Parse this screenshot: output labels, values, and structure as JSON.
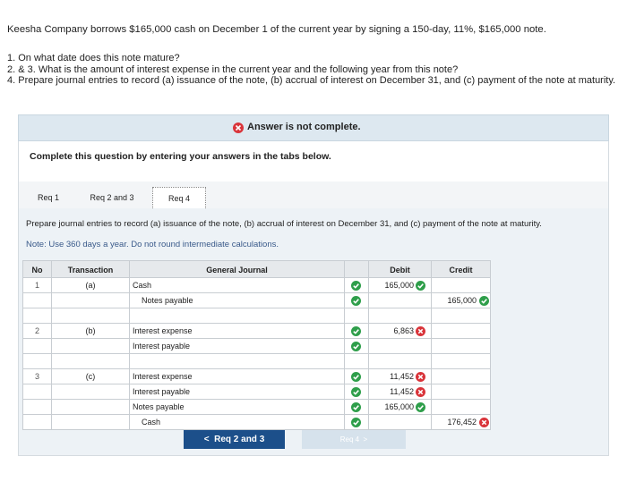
{
  "problem": {
    "intro": "Keesha Company borrows $165,000 cash on December 1 of the current year by signing a 150-day, 11%, $165,000 note.",
    "questions": [
      "1. On what date does this note mature?",
      "2. & 3. What is the amount of interest expense in the current year and the following year from this note?",
      "4. Prepare journal entries to record (a) issuance of the note, (b) accrual of interest on December 31, and (c) payment of the note at maturity."
    ]
  },
  "banner": "Answer is not complete.",
  "complete_text": "Complete this question by entering your answers in the tabs below.",
  "tabs": [
    "Req 1",
    "Req 2 and 3",
    "Req 4"
  ],
  "active_tab": 2,
  "panel": {
    "instruction": "Prepare journal entries to record (a) issuance of the note, (b) accrual of interest on December 31, and (c) payment of the note at maturity.",
    "note": "Note: Use 360 days a year. Do not round intermediate calculations."
  },
  "table": {
    "headers": [
      "No",
      "Transaction",
      "General Journal",
      "Debit",
      "Credit"
    ],
    "entries": [
      {
        "no": "1",
        "transaction": "(a)",
        "lines": [
          {
            "account": "Cash",
            "debit": "165,000",
            "account_correct": true,
            "amount_correct": true
          },
          {
            "account": "Notes payable",
            "credit": "165,000",
            "account_correct": true,
            "amount_correct": true
          }
        ]
      },
      {
        "no": "2",
        "transaction": "(b)",
        "lines": [
          {
            "account": "Interest expense",
            "debit": "6,863",
            "account_correct": true,
            "amount_correct": false
          },
          {
            "account": "Interest payable",
            "account_correct": true
          }
        ]
      },
      {
        "no": "3",
        "transaction": "(c)",
        "lines": [
          {
            "account": "Interest expense",
            "debit": "11,452",
            "account_correct": true,
            "amount_correct": false
          },
          {
            "account": "Interest payable",
            "debit": "11,452",
            "account_correct": true,
            "amount_correct": false
          },
          {
            "account": "Notes payable",
            "debit": "165,000",
            "account_correct": true,
            "amount_correct": true
          },
          {
            "account": "Cash",
            "credit": "176,452",
            "account_correct": true,
            "amount_correct": false
          }
        ]
      }
    ]
  },
  "buttons": [
    "Req 2 and 3",
    "Req 4"
  ]
}
